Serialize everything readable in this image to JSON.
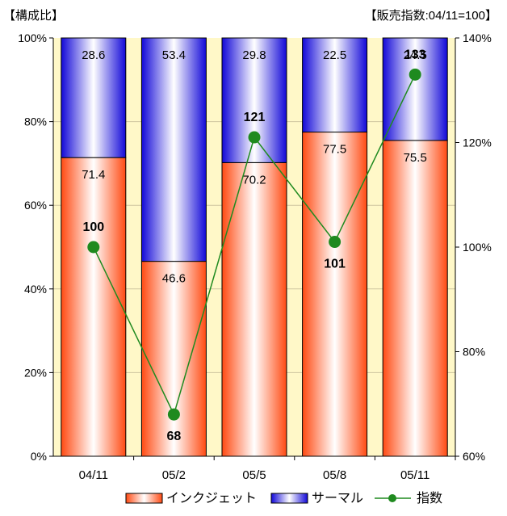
{
  "chart_data": {
    "type": "bar",
    "stacked": true,
    "left_axis_title": "【構成比】",
    "right_axis_title": "【販売指数:04/11=100】",
    "categories": [
      "04/11",
      "05/2",
      "05/5",
      "05/8",
      "05/11"
    ],
    "series": [
      {
        "name": "インクジェット",
        "values": [
          71.4,
          46.6,
          70.2,
          77.5,
          75.5
        ],
        "color": "#ff6a3a"
      },
      {
        "name": "サーマル",
        "values": [
          28.6,
          53.4,
          29.8,
          22.5,
          24.5
        ],
        "color": "#2a1fe6"
      }
    ],
    "line_series": {
      "name": "指数",
      "values": [
        100,
        68,
        121,
        101,
        133
      ],
      "color": "#1f8a1f",
      "axis": "right"
    },
    "y_left": {
      "min": 0,
      "max": 100,
      "step": 20,
      "unit": "%"
    },
    "y_right": {
      "min": 60,
      "max": 140,
      "step": 20,
      "unit": "%"
    },
    "plot_background": "#fff8c8",
    "legend_position": "bottom-right"
  }
}
